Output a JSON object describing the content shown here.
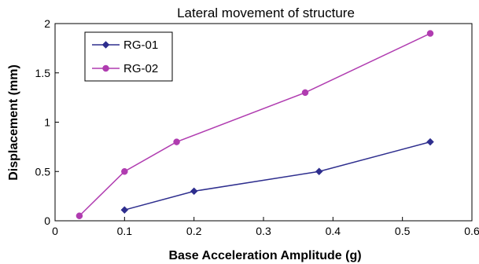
{
  "chart_data": {
    "type": "line",
    "title": "Lateral movement of structure",
    "xlabel": "Base Acceleration Amplitude (g)",
    "ylabel": "Displacement (mm)",
    "xlim": [
      0,
      0.6
    ],
    "ylim": [
      0,
      2
    ],
    "x_ticks": [
      "0",
      "0.1",
      "0.2",
      "0.3",
      "0.4",
      "0.5",
      "0.6"
    ],
    "y_ticks": [
      "0",
      "0.5",
      "1",
      "1.5",
      "2"
    ],
    "grid": false,
    "legend_position": "top-left",
    "series": [
      {
        "name": "RG-01",
        "marker": "diamond",
        "color": "#2e2e8e",
        "points": [
          {
            "x": 0.1,
            "y": 0.11
          },
          {
            "x": 0.2,
            "y": 0.3
          },
          {
            "x": 0.38,
            "y": 0.5
          },
          {
            "x": 0.54,
            "y": 0.8
          }
        ]
      },
      {
        "name": "RG-02",
        "marker": "circle",
        "color": "#b03cb0",
        "points": [
          {
            "x": 0.035,
            "y": 0.05
          },
          {
            "x": 0.1,
            "y": 0.5
          },
          {
            "x": 0.175,
            "y": 0.8
          },
          {
            "x": 0.36,
            "y": 1.3
          },
          {
            "x": 0.54,
            "y": 1.9
          }
        ]
      }
    ]
  }
}
